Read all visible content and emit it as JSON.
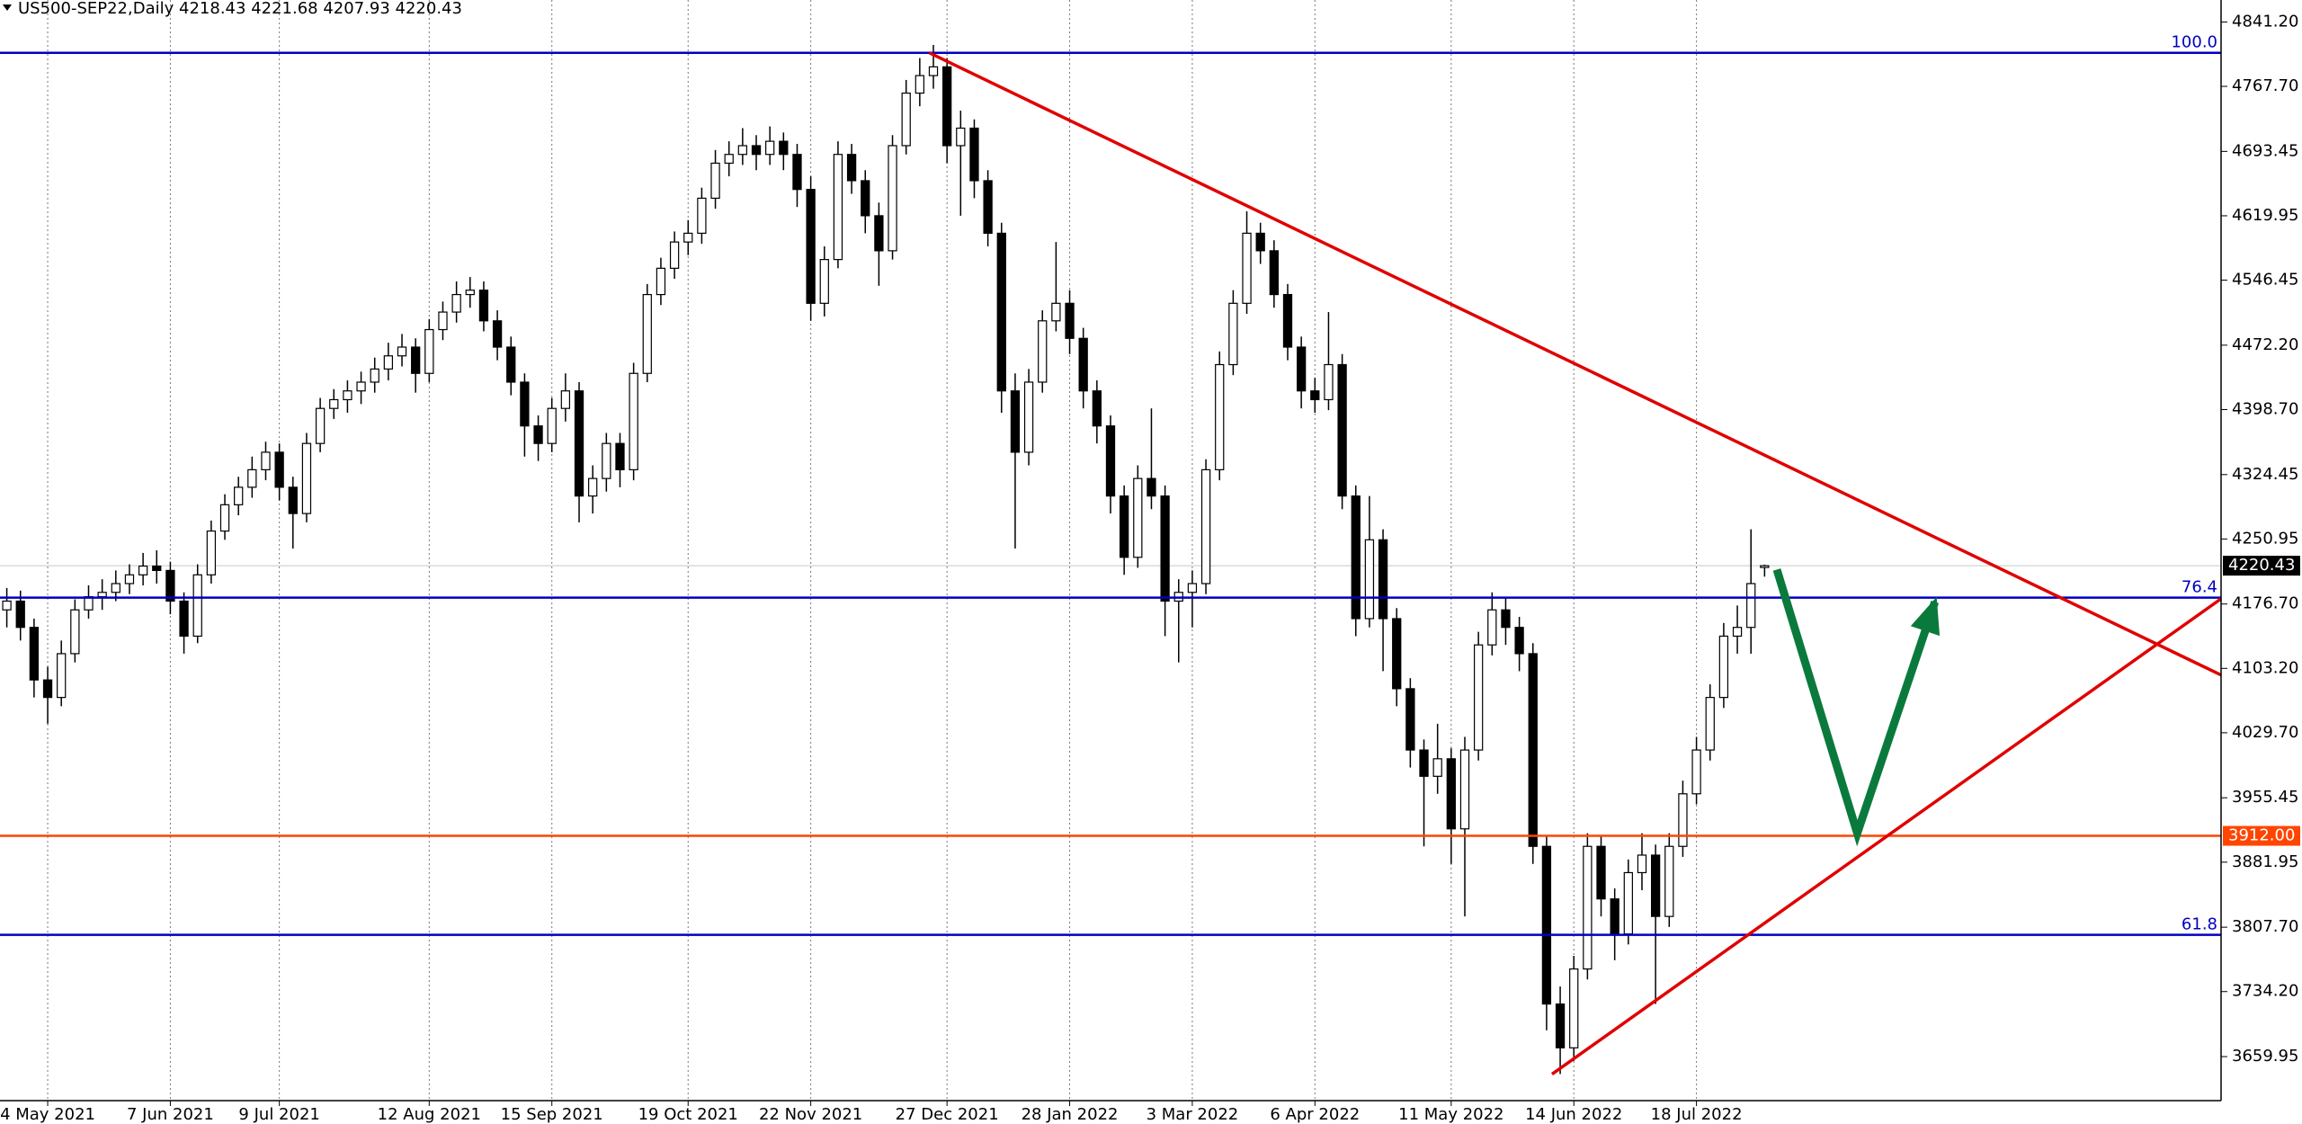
{
  "chart_data": {
    "type": "candlestick",
    "title": "US500-SEP22,Daily",
    "header_values": [
      4218.43,
      4221.68,
      4207.93,
      4220.43
    ],
    "candles": [
      [
        4170,
        4195,
        4150,
        4180
      ],
      [
        4180,
        4192,
        4135,
        4150
      ],
      [
        4150,
        4160,
        4070,
        4090
      ],
      [
        4090,
        4105,
        4040,
        4070
      ],
      [
        4070,
        4135,
        4060,
        4120
      ],
      [
        4120,
        4182,
        4110,
        4170
      ],
      [
        4170,
        4198,
        4160,
        4185
      ],
      [
        4185,
        4205,
        4170,
        4190
      ],
      [
        4190,
        4215,
        4180,
        4200
      ],
      [
        4200,
        4222,
        4188,
        4210
      ],
      [
        4210,
        4235,
        4198,
        4220
      ],
      [
        4220,
        4238,
        4200,
        4215
      ],
      [
        4215,
        4225,
        4165,
        4180
      ],
      [
        4180,
        4190,
        4120,
        4140
      ],
      [
        4140,
        4222,
        4132,
        4210
      ],
      [
        4210,
        4272,
        4200,
        4260
      ],
      [
        4260,
        4302,
        4250,
        4290
      ],
      [
        4290,
        4322,
        4278,
        4310
      ],
      [
        4310,
        4345,
        4298,
        4330
      ],
      [
        4330,
        4362,
        4318,
        4350
      ],
      [
        4350,
        4360,
        4295,
        4310
      ],
      [
        4310,
        4322,
        4240,
        4280
      ],
      [
        4280,
        4372,
        4270,
        4360
      ],
      [
        4360,
        4412,
        4350,
        4400
      ],
      [
        4400,
        4422,
        4388,
        4410
      ],
      [
        4410,
        4432,
        4395,
        4420
      ],
      [
        4420,
        4442,
        4405,
        4430
      ],
      [
        4430,
        4458,
        4418,
        4445
      ],
      [
        4445,
        4475,
        4432,
        4460
      ],
      [
        4460,
        4485,
        4448,
        4470
      ],
      [
        4470,
        4480,
        4418,
        4440
      ],
      [
        4440,
        4502,
        4430,
        4490
      ],
      [
        4490,
        4522,
        4478,
        4510
      ],
      [
        4510,
        4545,
        4498,
        4530
      ],
      [
        4530,
        4550,
        4515,
        4535
      ],
      [
        4535,
        4545,
        4488,
        4500
      ],
      [
        4500,
        4512,
        4455,
        4470
      ],
      [
        4470,
        4482,
        4415,
        4430
      ],
      [
        4430,
        4440,
        4345,
        4380
      ],
      [
        4380,
        4392,
        4340,
        4360
      ],
      [
        4360,
        4412,
        4350,
        4400
      ],
      [
        4400,
        4440,
        4385,
        4420
      ],
      [
        4420,
        4430,
        4270,
        4300
      ],
      [
        4300,
        4335,
        4280,
        4320
      ],
      [
        4320,
        4372,
        4305,
        4360
      ],
      [
        4360,
        4372,
        4310,
        4330
      ],
      [
        4330,
        4452,
        4318,
        4440
      ],
      [
        4440,
        4542,
        4430,
        4530
      ],
      [
        4530,
        4572,
        4518,
        4560
      ],
      [
        4560,
        4602,
        4548,
        4590
      ],
      [
        4590,
        4615,
        4575,
        4600
      ],
      [
        4600,
        4652,
        4588,
        4640
      ],
      [
        4640,
        4695,
        4628,
        4680
      ],
      [
        4680,
        4705,
        4665,
        4690
      ],
      [
        4690,
        4720,
        4678,
        4700
      ],
      [
        4700,
        4712,
        4672,
        4690
      ],
      [
        4690,
        4722,
        4678,
        4705
      ],
      [
        4705,
        4715,
        4672,
        4690
      ],
      [
        4690,
        4702,
        4630,
        4650
      ],
      [
        4650,
        4665,
        4500,
        4520
      ],
      [
        4520,
        4585,
        4505,
        4570
      ],
      [
        4570,
        4705,
        4560,
        4690
      ],
      [
        4690,
        4702,
        4645,
        4660
      ],
      [
        4660,
        4672,
        4600,
        4620
      ],
      [
        4620,
        4635,
        4540,
        4580
      ],
      [
        4580,
        4712,
        4570,
        4700
      ],
      [
        4700,
        4775,
        4690,
        4760
      ],
      [
        4760,
        4800,
        4745,
        4780
      ],
      [
        4780,
        4815,
        4765,
        4790
      ],
      [
        4790,
        4800,
        4680,
        4700
      ],
      [
        4700,
        4740,
        4620,
        4720
      ],
      [
        4720,
        4730,
        4640,
        4660
      ],
      [
        4660,
        4672,
        4585,
        4600
      ],
      [
        4600,
        4612,
        4395,
        4420
      ],
      [
        4420,
        4440,
        4240,
        4350
      ],
      [
        4350,
        4445,
        4335,
        4430
      ],
      [
        4430,
        4512,
        4418,
        4500
      ],
      [
        4500,
        4590,
        4488,
        4520
      ],
      [
        4520,
        4535,
        4462,
        4480
      ],
      [
        4480,
        4492,
        4400,
        4420
      ],
      [
        4420,
        4432,
        4360,
        4380
      ],
      [
        4380,
        4392,
        4280,
        4300
      ],
      [
        4300,
        4312,
        4210,
        4230
      ],
      [
        4230,
        4335,
        4218,
        4320
      ],
      [
        4320,
        4400,
        4285,
        4300
      ],
      [
        4300,
        4312,
        4140,
        4180
      ],
      [
        4180,
        4205,
        4110,
        4190
      ],
      [
        4190,
        4215,
        4150,
        4200
      ],
      [
        4200,
        4342,
        4188,
        4330
      ],
      [
        4330,
        4465,
        4318,
        4450
      ],
      [
        4450,
        4535,
        4438,
        4520
      ],
      [
        4520,
        4625,
        4508,
        4600
      ],
      [
        4600,
        4612,
        4565,
        4580
      ],
      [
        4580,
        4592,
        4515,
        4530
      ],
      [
        4530,
        4542,
        4455,
        4470
      ],
      [
        4470,
        4482,
        4400,
        4420
      ],
      [
        4420,
        4435,
        4395,
        4410
      ],
      [
        4410,
        4510,
        4398,
        4450
      ],
      [
        4450,
        4462,
        4285,
        4300
      ],
      [
        4300,
        4312,
        4140,
        4160
      ],
      [
        4160,
        4300,
        4150,
        4250
      ],
      [
        4250,
        4262,
        4100,
        4160
      ],
      [
        4160,
        4172,
        4060,
        4080
      ],
      [
        4080,
        4092,
        3990,
        4010
      ],
      [
        4010,
        4022,
        3900,
        3980
      ],
      [
        3980,
        4040,
        3960,
        4000
      ],
      [
        4000,
        4012,
        3880,
        3920
      ],
      [
        3920,
        4025,
        3820,
        4010
      ],
      [
        4010,
        4145,
        3998,
        4130
      ],
      [
        4130,
        4190,
        4118,
        4170
      ],
      [
        4170,
        4185,
        4130,
        4150
      ],
      [
        4150,
        4162,
        4100,
        4120
      ],
      [
        4120,
        4132,
        3880,
        3900
      ],
      [
        3900,
        3912,
        3690,
        3720
      ],
      [
        3720,
        3740,
        3640,
        3670
      ],
      [
        3670,
        3775,
        3655,
        3760
      ],
      [
        3760,
        3915,
        3748,
        3900
      ],
      [
        3900,
        3912,
        3820,
        3840
      ],
      [
        3840,
        3852,
        3770,
        3800
      ],
      [
        3800,
        3885,
        3788,
        3870
      ],
      [
        3870,
        3915,
        3850,
        3890
      ],
      [
        3890,
        3902,
        3720,
        3820
      ],
      [
        3820,
        3915,
        3808,
        3900
      ],
      [
        3900,
        3975,
        3888,
        3960
      ],
      [
        3960,
        4025,
        3948,
        4010
      ],
      [
        4010,
        4085,
        3998,
        4070
      ],
      [
        4070,
        4155,
        4058,
        4140
      ],
      [
        4140,
        4175,
        4120,
        4150
      ],
      [
        4150,
        4262,
        4120,
        4200
      ],
      [
        4218.43,
        4221.68,
        4207.93,
        4220.43
      ]
    ],
    "xlim": [
      -0.5,
      162.5
    ],
    "xticks": [
      {
        "value": 3,
        "label": "4 May 2021"
      },
      {
        "value": 12,
        "label": "7 Jun 2021"
      },
      {
        "value": 20,
        "label": "9 Jul 2021"
      },
      {
        "value": 31,
        "label": "12 Aug 2021"
      },
      {
        "value": 40,
        "label": "15 Sep 2021"
      },
      {
        "value": 50,
        "label": "19 Oct 2021"
      },
      {
        "value": 59,
        "label": "22 Nov 2021"
      },
      {
        "value": 69,
        "label": "27 Dec 2021"
      },
      {
        "value": 78,
        "label": "28 Jan 2022"
      },
      {
        "value": 87,
        "label": "3 Mar 2022"
      },
      {
        "value": 96,
        "label": "6 Apr 2022"
      },
      {
        "value": 106,
        "label": "11 May 2022"
      },
      {
        "value": 115,
        "label": "14 Jun 2022"
      },
      {
        "value": 124,
        "label": "18 Jul 2022"
      }
    ],
    "ylim": [
      3609.7,
      4866.3
    ],
    "yticks": [
      {
        "value": 4841.2,
        "label": "4841.20"
      },
      {
        "value": 4767.7,
        "label": "4767.70"
      },
      {
        "value": 4693.45,
        "label": "4693.45"
      },
      {
        "value": 4619.95,
        "label": "4619.95"
      },
      {
        "value": 4546.45,
        "label": "4546.45"
      },
      {
        "value": 4472.2,
        "label": "4472.20"
      },
      {
        "value": 4398.7,
        "label": "4398.70"
      },
      {
        "value": 4324.45,
        "label": "4324.45"
      },
      {
        "value": 4250.95,
        "label": "4250.95"
      },
      {
        "value": 4176.7,
        "label": "4176.70"
      },
      {
        "value": 4103.2,
        "label": "4103.20"
      },
      {
        "value": 4029.7,
        "label": "4029.70"
      },
      {
        "value": 3955.45,
        "label": "3955.45"
      },
      {
        "value": 3881.95,
        "label": "3881.95"
      },
      {
        "value": 3807.7,
        "label": "3807.70"
      },
      {
        "value": 3734.2,
        "label": "3734.20"
      },
      {
        "value": 3659.95,
        "label": "3659.95"
      }
    ],
    "grid": true,
    "levels": [
      {
        "value": 4806,
        "label": "100.0",
        "color": "#0000c0"
      },
      {
        "value": 4184,
        "label": "76.4",
        "color": "#0000c0"
      },
      {
        "value": 3799,
        "label": "61.8",
        "color": "#0000c0"
      }
    ],
    "price_line": {
      "value": 3912,
      "label": "3912.00",
      "color": "#ff4500"
    },
    "last_price": {
      "value": 4220.43,
      "color": "#000000"
    },
    "trendlines": [
      {
        "color": "#e00000",
        "x": [
          67.7,
          162.5
        ],
        "y": [
          4806,
          4095.6
        ]
      },
      {
        "color": "#e00000",
        "x": [
          113.4,
          162.5
        ],
        "y": [
          3639.9,
          4182.7
        ]
      }
    ],
    "arrow": {
      "color": "#0a7a3c",
      "x": [
        129.9,
        135.8,
        141.5
      ],
      "y": [
        4216,
        3915,
        4179
      ]
    }
  }
}
